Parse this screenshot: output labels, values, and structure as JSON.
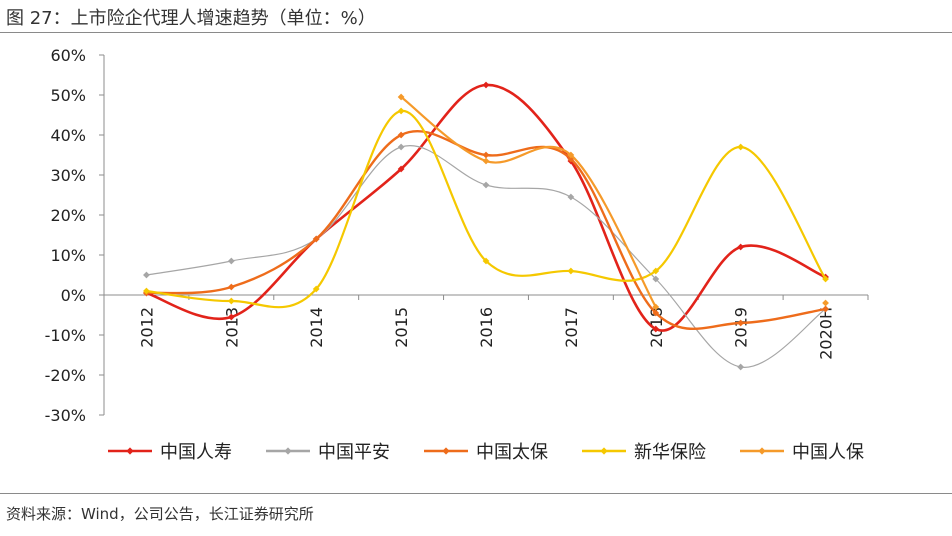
{
  "figure": {
    "title": "图 27：上市险企代理人增速趋势（单位：%）",
    "source": "资料来源：Wind，公司公告，长江证券研究所"
  },
  "chart_data": {
    "type": "line",
    "categories": [
      "2012",
      "2013",
      "2014",
      "2015",
      "2016",
      "2017",
      "2018",
      "2019",
      "2020H"
    ],
    "ylim": [
      -30,
      60
    ],
    "yticks": [
      "60%",
      "50%",
      "40%",
      "30%",
      "20%",
      "10%",
      "0%",
      "-10%",
      "-20%",
      "-30%"
    ],
    "grid": false,
    "legend_position": "bottom",
    "series": [
      {
        "name": "中国人寿",
        "color": "#e2231a",
        "values": [
          0.5,
          -5.5,
          14,
          31.5,
          52.5,
          33.5,
          -8.5,
          12,
          4.5
        ]
      },
      {
        "name": "中国平安",
        "color": "#a6a6a6",
        "values": [
          5,
          8.5,
          14,
          37,
          27.5,
          24.5,
          4,
          -18,
          -3.5
        ]
      },
      {
        "name": "中国太保",
        "color": "#ee6c1b",
        "values": [
          0.5,
          2,
          14,
          40,
          35,
          34,
          -4.5,
          -7,
          -3.5
        ]
      },
      {
        "name": "新华保险",
        "color": "#f5c800",
        "values": [
          1,
          -1.5,
          1.5,
          46,
          8.5,
          6,
          6,
          37,
          4
        ]
      },
      {
        "name": "中国人保",
        "color": "#f59a2a",
        "values": [
          null,
          null,
          null,
          49.5,
          33.5,
          35,
          -3,
          null,
          -2
        ]
      }
    ]
  }
}
